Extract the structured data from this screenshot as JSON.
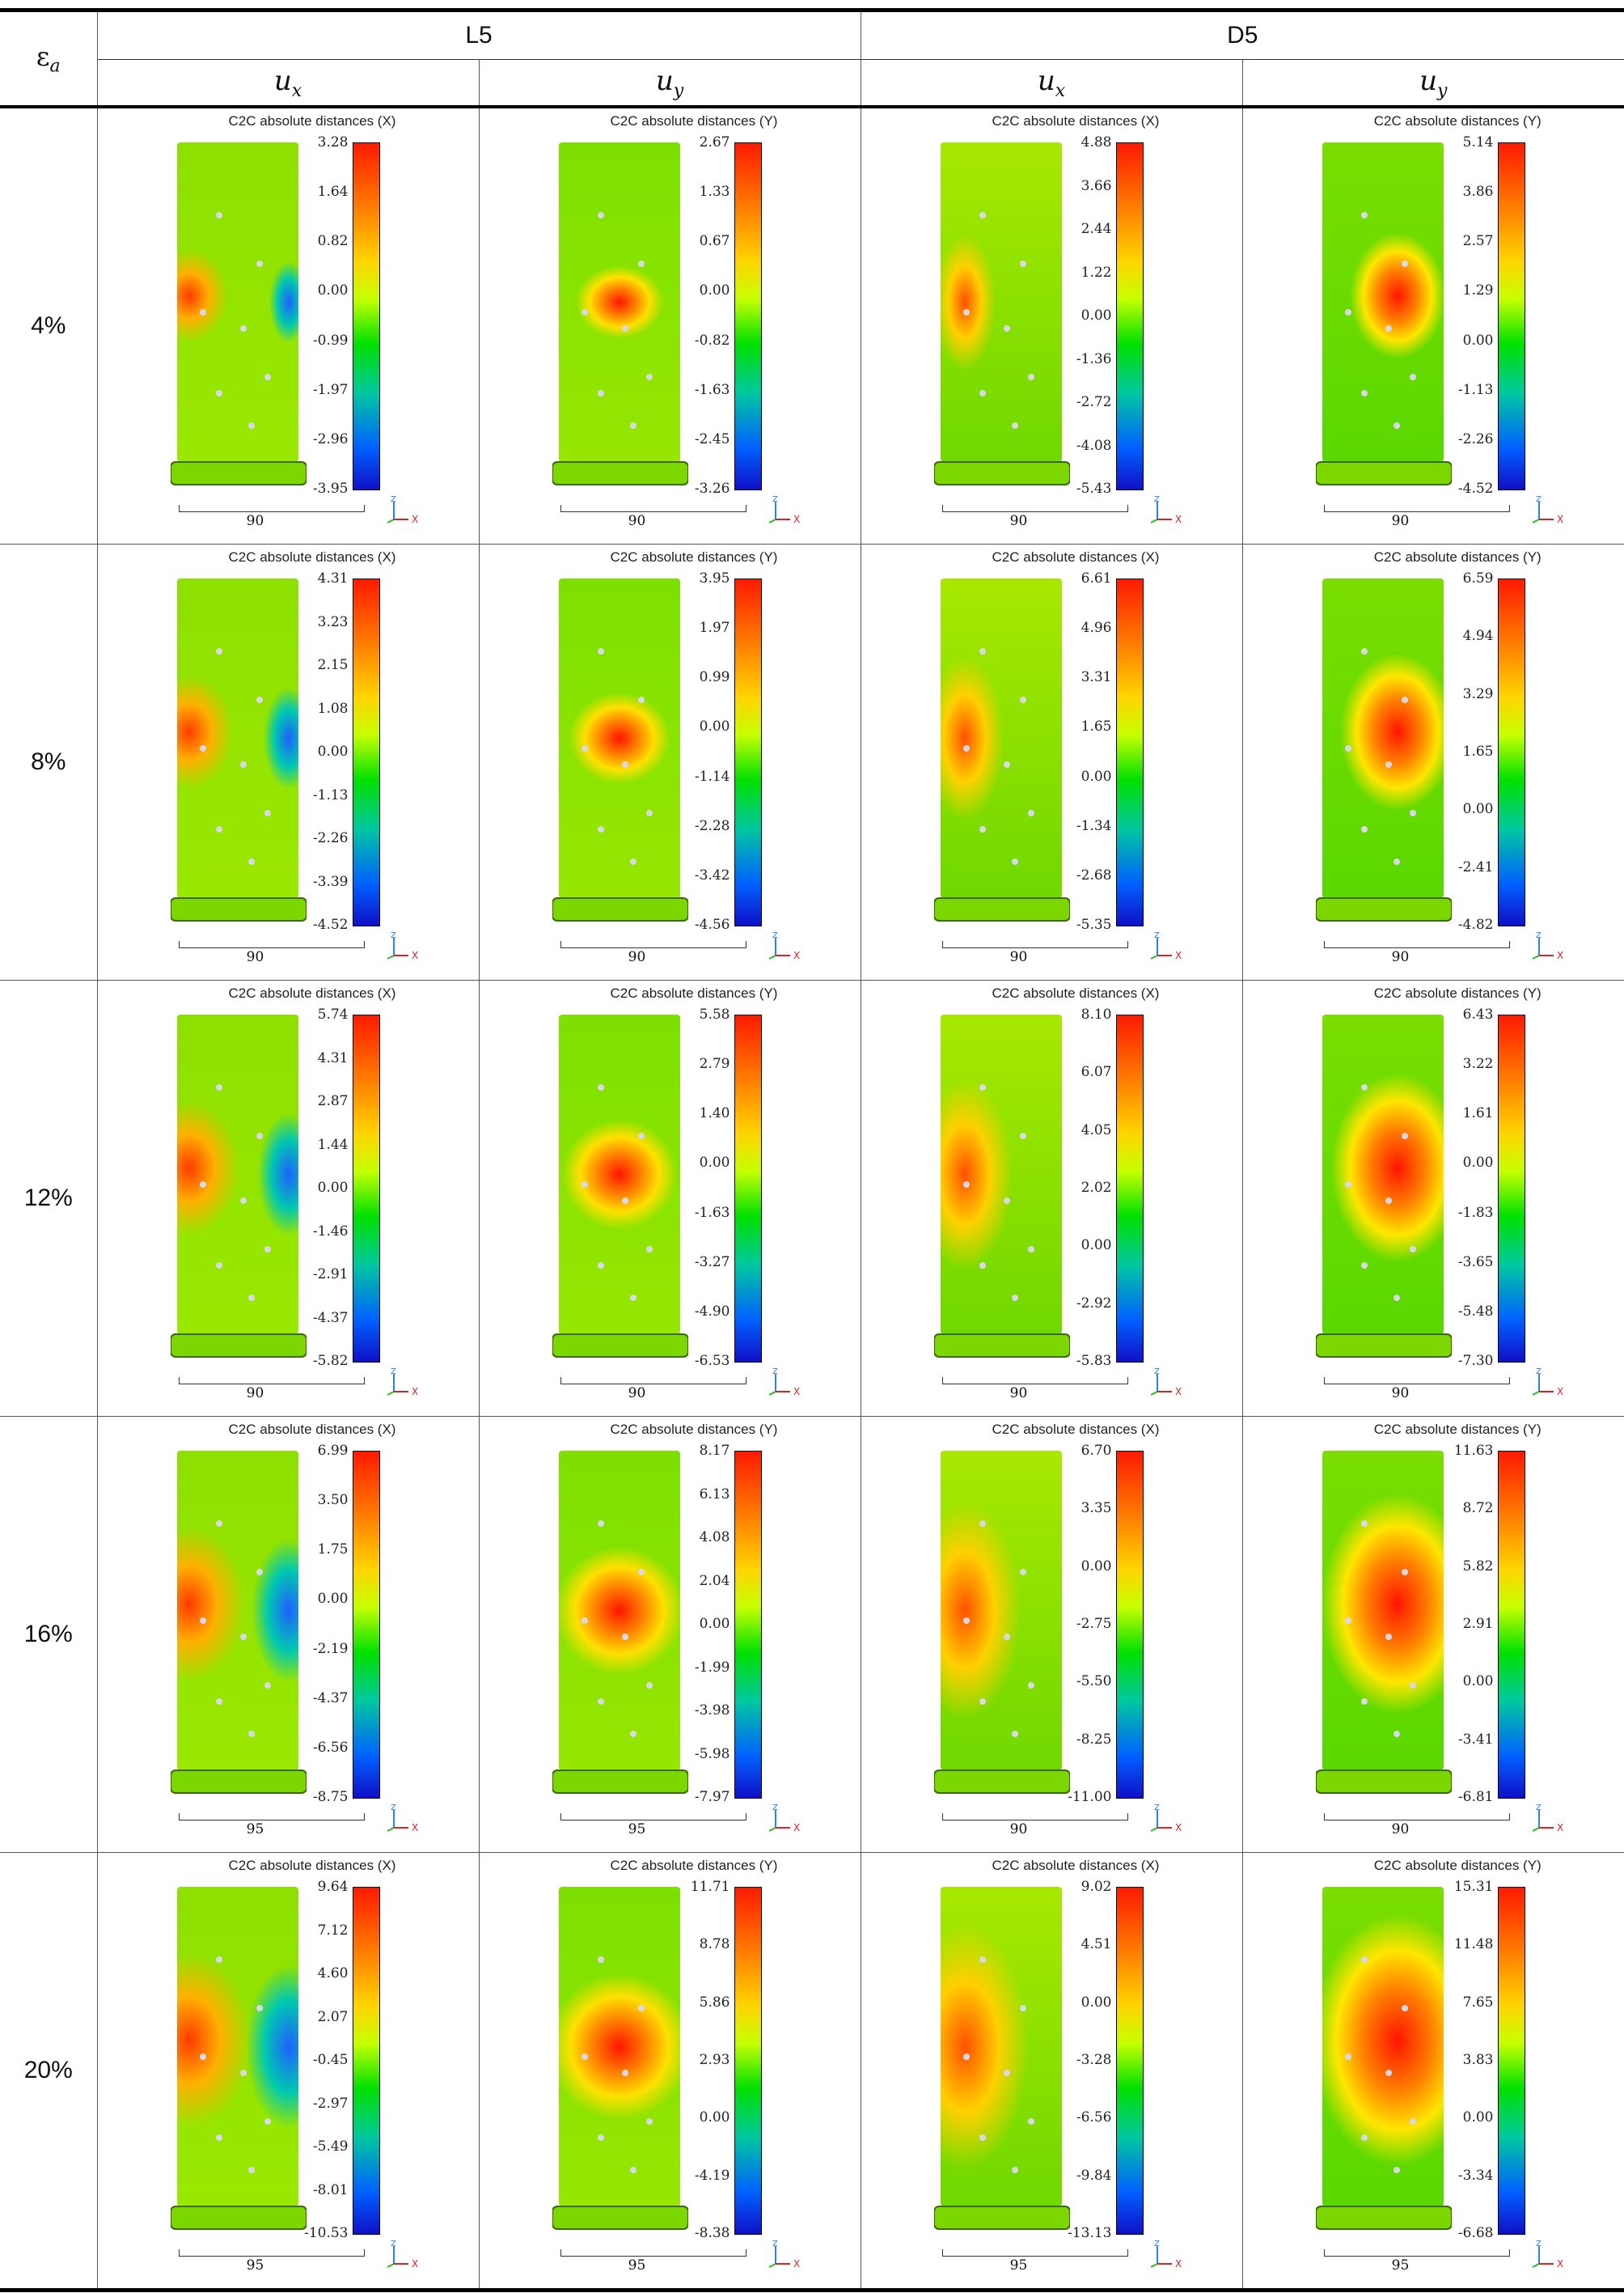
{
  "header": {
    "strain_symbol": "ε",
    "strain_sub": "a",
    "group_L5": "L5",
    "group_D5": "D5",
    "sub_ux": "u",
    "sub_ux_sub": "x",
    "sub_uy": "u",
    "sub_uy_sub": "y"
  },
  "rows": [
    {
      "strain": "4%",
      "cells": [
        {
          "title": "C2C absolute distances (X)",
          "ticks": [
            "3.28",
            "1.64",
            "0.82",
            "0.00",
            "-0.99",
            "-1.97",
            "-2.96",
            "-3.95"
          ],
          "scale": "90"
        },
        {
          "title": "C2C absolute distances (Y)",
          "ticks": [
            "2.67",
            "1.33",
            "0.67",
            "0.00",
            "-0.82",
            "-1.63",
            "-2.45",
            "-3.26"
          ],
          "scale": "90"
        },
        {
          "title": "C2C absolute distances (X)",
          "ticks": [
            "4.88",
            "3.66",
            "2.44",
            "1.22",
            "0.00",
            "-1.36",
            "-2.72",
            "-4.08",
            "-5.43"
          ],
          "scale": "90"
        },
        {
          "title": "C2C absolute distances (Y)",
          "ticks": [
            "5.14",
            "3.86",
            "2.57",
            "1.29",
            "0.00",
            "-1.13",
            "-2.26",
            "-4.52"
          ],
          "scale": "90"
        }
      ]
    },
    {
      "strain": "8%",
      "cells": [
        {
          "title": "C2C absolute distances (X)",
          "ticks": [
            "4.31",
            "3.23",
            "2.15",
            "1.08",
            "0.00",
            "-1.13",
            "-2.26",
            "-3.39",
            "-4.52"
          ],
          "scale": "90"
        },
        {
          "title": "C2C absolute distances (Y)",
          "ticks": [
            "3.95",
            "1.97",
            "0.99",
            "0.00",
            "-1.14",
            "-2.28",
            "-3.42",
            "-4.56"
          ],
          "scale": "90"
        },
        {
          "title": "C2C absolute distances (X)",
          "ticks": [
            "6.61",
            "4.96",
            "3.31",
            "1.65",
            "0.00",
            "-1.34",
            "-2.68",
            "-5.35"
          ],
          "scale": "90"
        },
        {
          "title": "C2C absolute distances (Y)",
          "ticks": [
            "6.59",
            "4.94",
            "3.29",
            "1.65",
            "0.00",
            "-2.41",
            "-4.82"
          ],
          "scale": "90"
        }
      ]
    },
    {
      "strain": "12%",
      "cells": [
        {
          "title": "C2C absolute distances (X)",
          "ticks": [
            "5.74",
            "4.31",
            "2.87",
            "1.44",
            "0.00",
            "-1.46",
            "-2.91",
            "-4.37",
            "-5.82"
          ],
          "scale": "90"
        },
        {
          "title": "C2C absolute distances (Y)",
          "ticks": [
            "5.58",
            "2.79",
            "1.40",
            "0.00",
            "-1.63",
            "-3.27",
            "-4.90",
            "-6.53"
          ],
          "scale": "90"
        },
        {
          "title": "C2C absolute distances (X)",
          "ticks": [
            "8.10",
            "6.07",
            "4.05",
            "2.02",
            "0.00",
            "-2.92",
            "-5.83"
          ],
          "scale": "90"
        },
        {
          "title": "C2C absolute distances (Y)",
          "ticks": [
            "6.43",
            "3.22",
            "1.61",
            "0.00",
            "-1.83",
            "-3.65",
            "-5.48",
            "-7.30"
          ],
          "scale": "90"
        }
      ]
    },
    {
      "strain": "16%",
      "cells": [
        {
          "title": "C2C absolute distances (X)",
          "ticks": [
            "6.99",
            "3.50",
            "1.75",
            "0.00",
            "-2.19",
            "-4.37",
            "-6.56",
            "-8.75"
          ],
          "scale": "95"
        },
        {
          "title": "C2C absolute distances (Y)",
          "ticks": [
            "8.17",
            "6.13",
            "4.08",
            "2.04",
            "0.00",
            "-1.99",
            "-3.98",
            "-5.98",
            "-7.97"
          ],
          "scale": "95"
        },
        {
          "title": "C2C absolute distances (X)",
          "ticks": [
            "6.70",
            "3.35",
            "0.00",
            "-2.75",
            "-5.50",
            "-8.25",
            "-11.00"
          ],
          "scale": "90"
        },
        {
          "title": "C2C absolute distances (Y)",
          "ticks": [
            "11.63",
            "8.72",
            "5.82",
            "2.91",
            "0.00",
            "-3.41",
            "-6.81"
          ],
          "scale": "90"
        }
      ]
    },
    {
      "strain": "20%",
      "cells": [
        {
          "title": "C2C absolute distances (X)",
          "ticks": [
            "9.64",
            "7.12",
            "4.60",
            "2.07",
            "-0.45",
            "-2.97",
            "-5.49",
            "-8.01",
            "-10.53"
          ],
          "scale": "95"
        },
        {
          "title": "C2C absolute distances (Y)",
          "ticks": [
            "11.71",
            "8.78",
            "5.86",
            "2.93",
            "0.00",
            "-4.19",
            "-8.38"
          ],
          "scale": "95"
        },
        {
          "title": "C2C absolute distances (X)",
          "ticks": [
            "9.02",
            "4.51",
            "0.00",
            "-3.28",
            "-6.56",
            "-9.84",
            "-13.13"
          ],
          "scale": "95"
        },
        {
          "title": "C2C absolute distances (Y)",
          "ticks": [
            "15.31",
            "11.48",
            "7.65",
            "3.83",
            "0.00",
            "-3.34",
            "-6.68"
          ],
          "scale": "95"
        }
      ]
    }
  ]
}
